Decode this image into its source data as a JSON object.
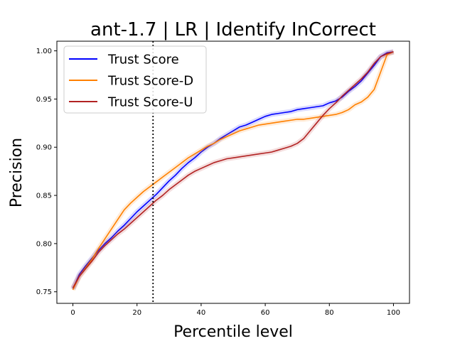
{
  "chart_data": {
    "type": "line",
    "title": "ant-1.7 | LR | Identify InCorrect",
    "xlabel": "Percentile level",
    "ylabel": "Precision",
    "xlim": [
      -5,
      105
    ],
    "ylim": [
      0.738,
      1.01
    ],
    "xticks": [
      0,
      20,
      40,
      60,
      80,
      100
    ],
    "yticks": [
      0.75,
      0.8,
      0.85,
      0.9,
      0.95,
      1.0
    ],
    "xtick_labels": [
      "0",
      "20",
      "40",
      "60",
      "80",
      "100"
    ],
    "ytick_labels": [
      "0.75",
      "0.80",
      "0.85",
      "0.90",
      "0.95",
      "1.00"
    ],
    "grid": false,
    "legend_position": "top-left",
    "vline_x": 25,
    "series": [
      {
        "name": "Trust Score",
        "color": "#0000ff",
        "x": [
          0,
          2,
          4,
          6,
          8,
          10,
          12,
          14,
          16,
          18,
          20,
          22,
          24,
          26,
          28,
          30,
          32,
          34,
          36,
          38,
          40,
          42,
          44,
          46,
          48,
          50,
          52,
          54,
          56,
          58,
          60,
          62,
          64,
          66,
          68,
          70,
          72,
          74,
          76,
          78,
          80,
          82,
          84,
          86,
          88,
          90,
          92,
          94,
          96,
          98,
          100
        ],
        "y": [
          0.753,
          0.768,
          0.777,
          0.785,
          0.793,
          0.8,
          0.806,
          0.813,
          0.819,
          0.826,
          0.833,
          0.839,
          0.845,
          0.851,
          0.858,
          0.865,
          0.871,
          0.878,
          0.884,
          0.889,
          0.895,
          0.9,
          0.904,
          0.909,
          0.913,
          0.917,
          0.921,
          0.923,
          0.926,
          0.929,
          0.932,
          0.934,
          0.935,
          0.936,
          0.937,
          0.939,
          0.94,
          0.941,
          0.942,
          0.943,
          0.946,
          0.948,
          0.952,
          0.958,
          0.963,
          0.969,
          0.977,
          0.985,
          0.994,
          0.998,
          0.999
        ]
      },
      {
        "name": "Trust Score-D",
        "color": "#ff8000",
        "x": [
          0,
          2,
          4,
          6,
          8,
          10,
          12,
          14,
          16,
          18,
          20,
          22,
          24,
          26,
          28,
          30,
          32,
          34,
          36,
          38,
          40,
          42,
          44,
          46,
          48,
          50,
          52,
          54,
          56,
          58,
          60,
          62,
          64,
          66,
          68,
          70,
          72,
          74,
          76,
          78,
          80,
          82,
          84,
          86,
          88,
          90,
          92,
          94,
          96,
          98,
          100
        ],
        "y": [
          0.752,
          0.766,
          0.775,
          0.784,
          0.795,
          0.805,
          0.815,
          0.825,
          0.835,
          0.842,
          0.848,
          0.854,
          0.859,
          0.864,
          0.869,
          0.874,
          0.879,
          0.884,
          0.889,
          0.893,
          0.897,
          0.901,
          0.904,
          0.908,
          0.911,
          0.914,
          0.917,
          0.919,
          0.921,
          0.923,
          0.924,
          0.925,
          0.926,
          0.927,
          0.928,
          0.929,
          0.929,
          0.93,
          0.931,
          0.932,
          0.933,
          0.934,
          0.936,
          0.939,
          0.944,
          0.947,
          0.952,
          0.96,
          0.978,
          0.996,
          0.999
        ]
      },
      {
        "name": "Trust Score-U",
        "color": "#b22222",
        "x": [
          0,
          2,
          4,
          6,
          8,
          10,
          12,
          14,
          16,
          18,
          20,
          22,
          24,
          26,
          28,
          30,
          32,
          34,
          36,
          38,
          40,
          42,
          44,
          46,
          48,
          50,
          52,
          54,
          56,
          58,
          60,
          62,
          64,
          66,
          68,
          70,
          72,
          74,
          76,
          78,
          80,
          82,
          84,
          86,
          88,
          90,
          92,
          94,
          96,
          98,
          100
        ],
        "y": [
          0.754,
          0.766,
          0.774,
          0.782,
          0.791,
          0.798,
          0.804,
          0.81,
          0.815,
          0.821,
          0.827,
          0.833,
          0.839,
          0.845,
          0.85,
          0.856,
          0.861,
          0.866,
          0.871,
          0.875,
          0.878,
          0.881,
          0.884,
          0.886,
          0.888,
          0.889,
          0.89,
          0.891,
          0.892,
          0.893,
          0.894,
          0.895,
          0.897,
          0.899,
          0.901,
          0.904,
          0.909,
          0.917,
          0.925,
          0.933,
          0.94,
          0.946,
          0.953,
          0.959,
          0.965,
          0.971,
          0.978,
          0.987,
          0.994,
          0.997,
          0.999
        ]
      }
    ]
  }
}
